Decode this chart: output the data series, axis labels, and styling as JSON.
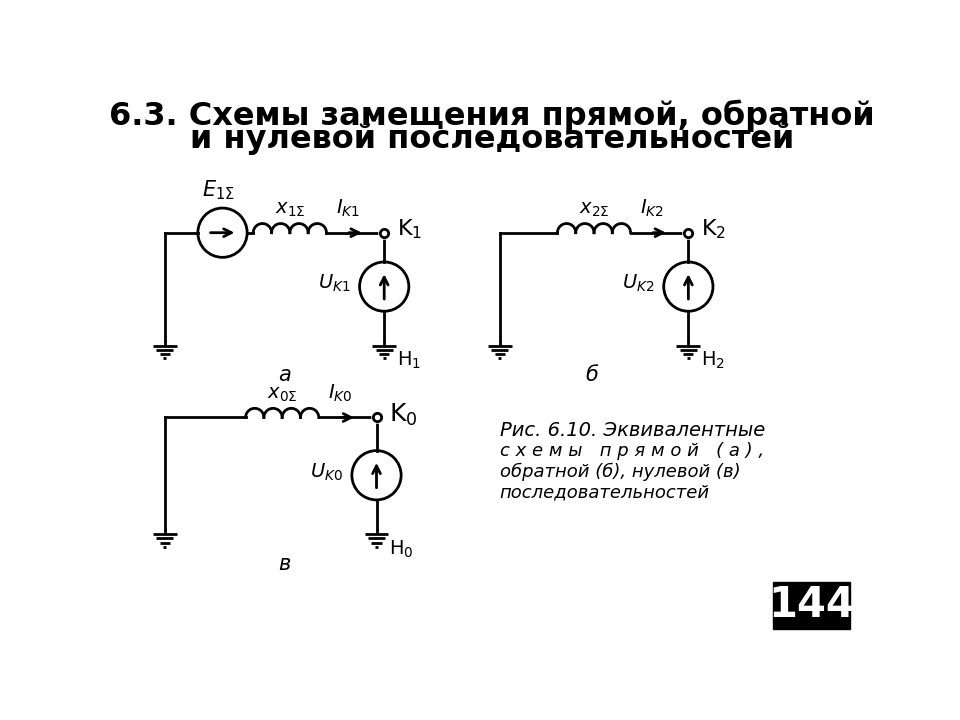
{
  "title_line1": "6.3. Схемы замещения прямой, обратной",
  "title_line2": "и нулевой последовательностей",
  "bg_color": "#ffffff",
  "line_color": "#000000",
  "page_number": "144",
  "caption_lines": [
    "Рис. 6.10. Эквивалентные",
    "с х е м ы   п р я м о й   ( а ) ,",
    "обратной (б), нулевой (в)",
    "последовательностей"
  ]
}
